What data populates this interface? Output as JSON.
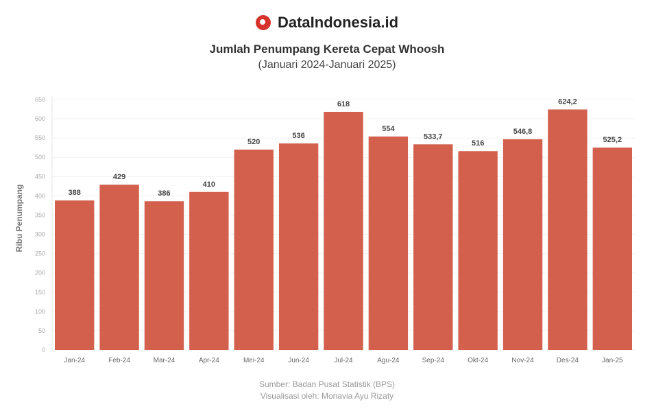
{
  "brand": {
    "name": "DataIndonesia.id",
    "color": "#d6332b"
  },
  "chart_data": {
    "type": "bar",
    "title": "Jumlah Penumpang Kereta Cepat Whoosh",
    "subtitle": "(Januari 2024-Januari 2025)",
    "ylabel": "Ribu Penumpang",
    "xlabel": "",
    "ylim": [
      0,
      650
    ],
    "yticks": [
      0,
      50,
      100,
      150,
      200,
      250,
      300,
      350,
      400,
      450,
      500,
      550,
      600,
      650
    ],
    "grid": true,
    "bar_color": "#d2604c",
    "categories": [
      "Jan-24",
      "Feb-24",
      "Mar-24",
      "Apr-24",
      "Mei-24",
      "Jun-24",
      "Jul-24",
      "Agu-24",
      "Sep-24",
      "Okt-24",
      "Nov-24",
      "Des-24",
      "Jan-25"
    ],
    "values": [
      388,
      429,
      386,
      410,
      520,
      536,
      618,
      554,
      533.7,
      516,
      546.8,
      624.2,
      525.2
    ],
    "data_labels": [
      "388",
      "429",
      "386",
      "410",
      "520",
      "536",
      "618",
      "554",
      "533,7",
      "516",
      "546,8",
      "624,2",
      "525,2"
    ]
  },
  "footer": {
    "source": "Sumber: Badan Pusat Statistik (BPS)",
    "credit": "Visualisasi oleh: Monavia Ayu Rizaty"
  }
}
